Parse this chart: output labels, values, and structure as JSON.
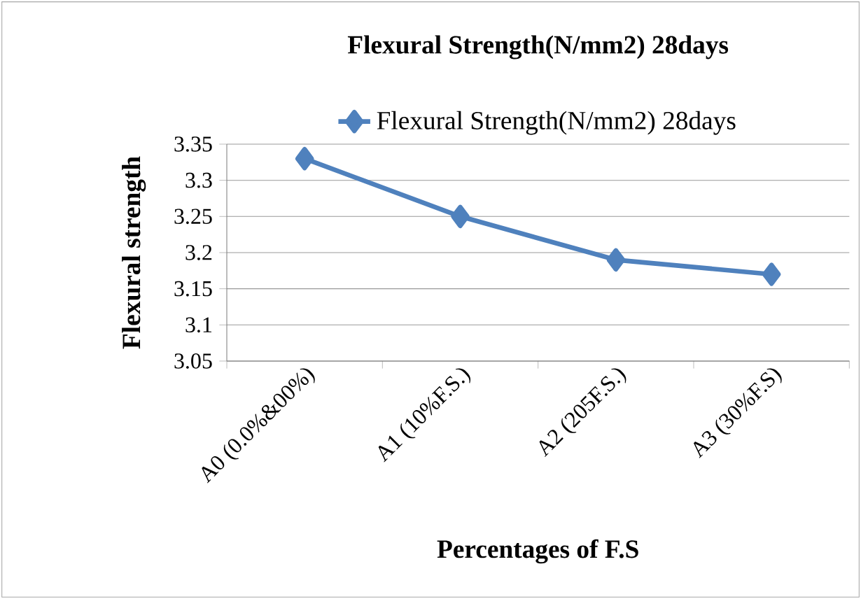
{
  "chart_data": {
    "type": "line",
    "title": "Flexural Strength(N/mm2) 28days",
    "xlabel": "Percentages of F.S",
    "ylabel": "Flexural strength",
    "categories": [
      "A0 (0.0%&00%)",
      "A1 (10%F.S.)",
      "A2 (205F.S.)",
      "A3 (30%F.S)"
    ],
    "series": [
      {
        "name": "Flexural Strength(N/mm2) 28days",
        "color": "#4f81bd",
        "values": [
          3.33,
          3.25,
          3.19,
          3.17
        ]
      }
    ],
    "ylim": [
      3.05,
      3.35
    ],
    "yticks": [
      3.05,
      3.1,
      3.15,
      3.2,
      3.25,
      3.3,
      3.35
    ],
    "grid": "y",
    "legend": "top",
    "marker": "diamond",
    "line_style": "solid"
  }
}
